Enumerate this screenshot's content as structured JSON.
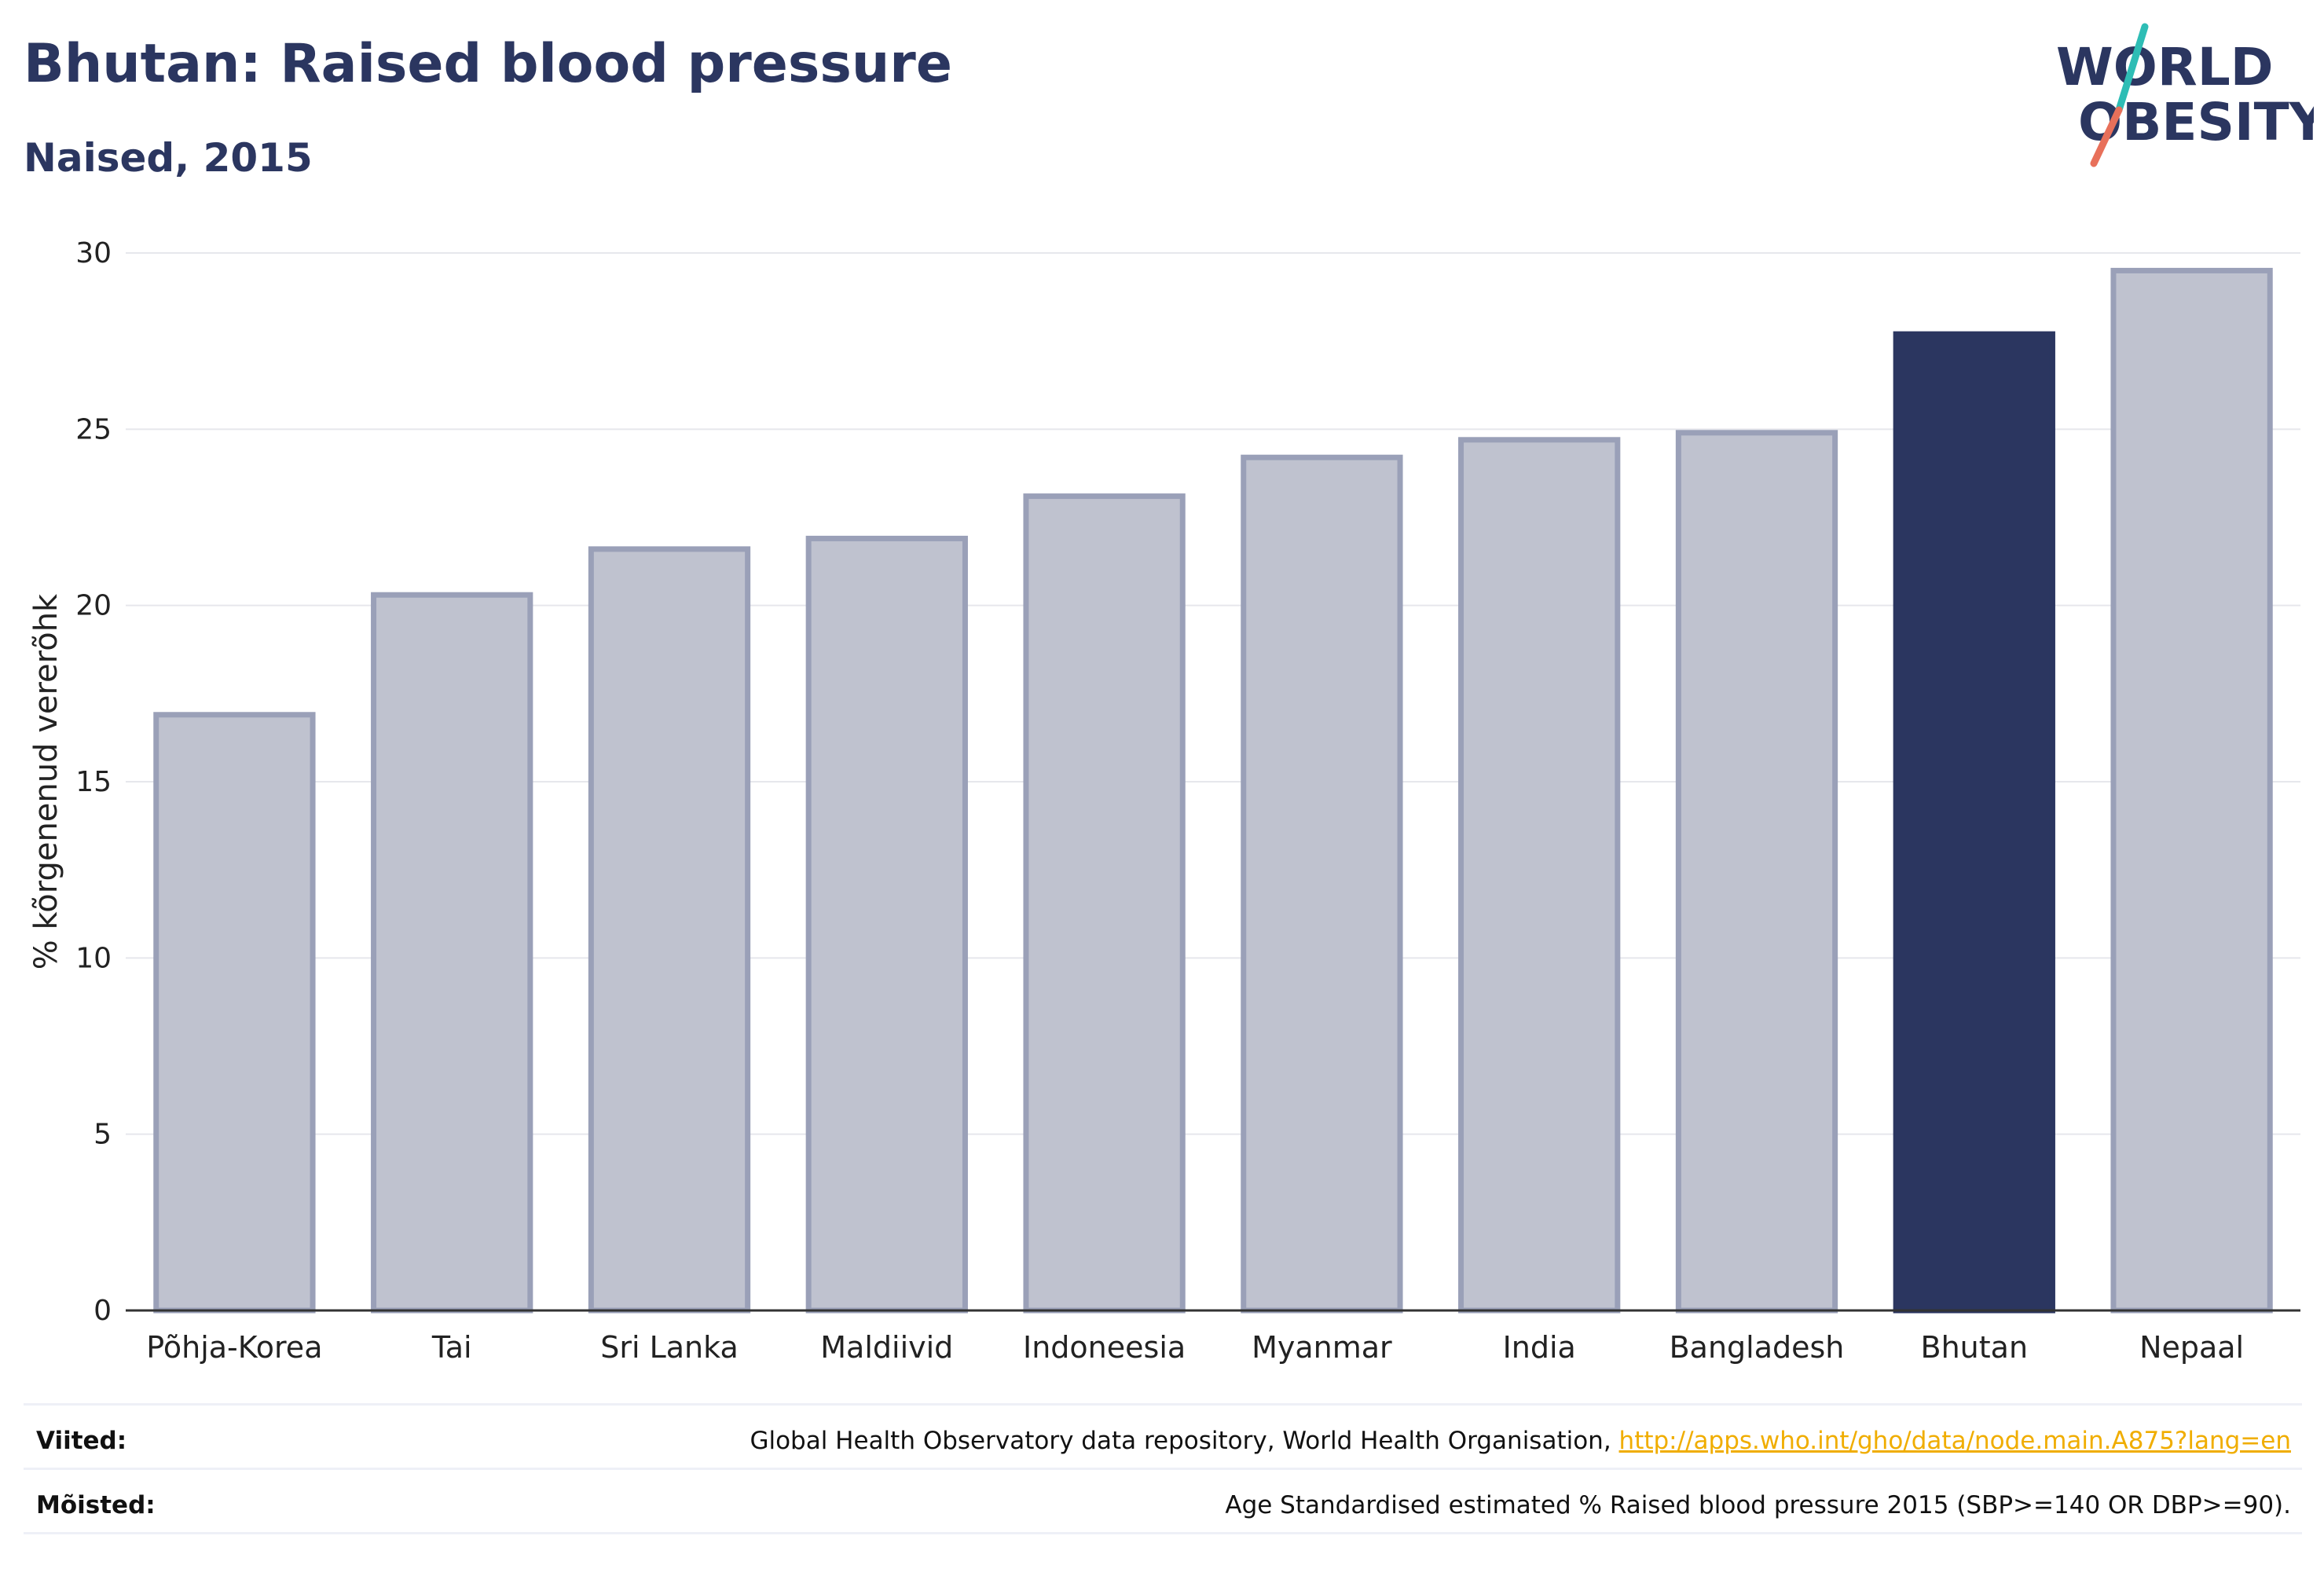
{
  "header": {
    "title": "Bhutan: Raised blood pressure",
    "subtitle": "Naised, 2015"
  },
  "logo": {
    "line1": "WORLD",
    "line2": "OBESITY",
    "text_color": "#2b3660",
    "slash_top_color": "#2ebdb5",
    "slash_bottom_color": "#e8705a"
  },
  "colors": {
    "highlight": "#2b3660",
    "default_fill": "#bfc2cf",
    "default_stroke": "#9aa0b8",
    "grid": "#e6e7ec",
    "axis": "#333333"
  },
  "chart_data": {
    "type": "bar",
    "title": "Bhutan: Raised blood pressure",
    "subtitle": "Naised, 2015",
    "xlabel": "",
    "ylabel": "% kõrgenenud vererõhk",
    "ylim": [
      0,
      30
    ],
    "yticks": [
      0,
      5,
      10,
      15,
      20,
      25,
      30
    ],
    "grid": true,
    "categories": [
      "Põhja-Korea",
      "Tai",
      "Sri Lanka",
      "Maldiivid",
      "Indoneesia",
      "Myanmar",
      "India",
      "Bangladesh",
      "Bhutan",
      "Nepaal"
    ],
    "values": [
      16.9,
      20.3,
      21.6,
      21.9,
      23.1,
      24.2,
      24.7,
      24.9,
      27.7,
      29.5
    ],
    "highlight": "Bhutan"
  },
  "footer": {
    "sources_label": "Viited:",
    "sources_text": "Global Health Observatory data repository, World Health Organisation, ",
    "sources_link": "http://apps.who.int/gho/data/node.main.A875?lang=en",
    "definitions_label": "Mõisted:",
    "definitions_text": "Age Standardised estimated % Raised blood pressure 2015 (SBP>=140 OR DBP>=90)."
  }
}
